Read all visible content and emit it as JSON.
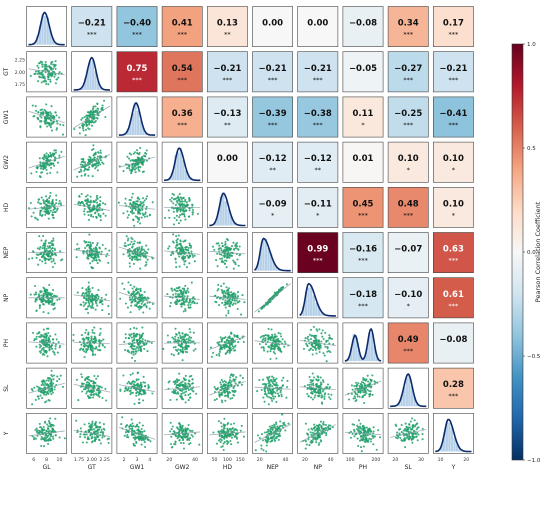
{
  "chart_data": {
    "type": "heatmap",
    "variables": [
      "GL",
      "GT",
      "GW1",
      "GW2",
      "HD",
      "NEP",
      "NP",
      "PH",
      "SL",
      "Y"
    ],
    "correlations": [
      {
        "row": "GL",
        "col": "GT",
        "r": -0.21,
        "sig": "***"
      },
      {
        "row": "GL",
        "col": "GW1",
        "r": -0.4,
        "sig": "***"
      },
      {
        "row": "GL",
        "col": "GW2",
        "r": 0.41,
        "sig": "***"
      },
      {
        "row": "GL",
        "col": "HD",
        "r": 0.13,
        "sig": "**"
      },
      {
        "row": "GL",
        "col": "NEP",
        "r": 0.0,
        "sig": ""
      },
      {
        "row": "GL",
        "col": "NP",
        "r": 0.0,
        "sig": ""
      },
      {
        "row": "GL",
        "col": "PH",
        "r": -0.08,
        "sig": ""
      },
      {
        "row": "GL",
        "col": "SL",
        "r": 0.34,
        "sig": "***"
      },
      {
        "row": "GL",
        "col": "Y",
        "r": 0.17,
        "sig": "***"
      },
      {
        "row": "GT",
        "col": "GW1",
        "r": 0.75,
        "sig": "***"
      },
      {
        "row": "GT",
        "col": "GW2",
        "r": 0.54,
        "sig": "***"
      },
      {
        "row": "GT",
        "col": "HD",
        "r": -0.21,
        "sig": "***"
      },
      {
        "row": "GT",
        "col": "NEP",
        "r": -0.21,
        "sig": "***"
      },
      {
        "row": "GT",
        "col": "NP",
        "r": -0.21,
        "sig": "***"
      },
      {
        "row": "GT",
        "col": "PH",
        "r": -0.05,
        "sig": ""
      },
      {
        "row": "GT",
        "col": "SL",
        "r": -0.27,
        "sig": "***"
      },
      {
        "row": "GT",
        "col": "Y",
        "r": -0.21,
        "sig": "***"
      },
      {
        "row": "GW1",
        "col": "GW2",
        "r": 0.36,
        "sig": "***"
      },
      {
        "row": "GW1",
        "col": "HD",
        "r": -0.13,
        "sig": "**"
      },
      {
        "row": "GW1",
        "col": "NEP",
        "r": -0.39,
        "sig": "***"
      },
      {
        "row": "GW1",
        "col": "NP",
        "r": -0.38,
        "sig": "***"
      },
      {
        "row": "GW1",
        "col": "PH",
        "r": 0.11,
        "sig": "*"
      },
      {
        "row": "GW1",
        "col": "SL",
        "r": -0.25,
        "sig": "***"
      },
      {
        "row": "GW1",
        "col": "Y",
        "r": -0.41,
        "sig": "***"
      },
      {
        "row": "GW2",
        "col": "HD",
        "r": 0.0,
        "sig": ""
      },
      {
        "row": "GW2",
        "col": "NEP",
        "r": -0.12,
        "sig": "**"
      },
      {
        "row": "GW2",
        "col": "NP",
        "r": -0.12,
        "sig": "**"
      },
      {
        "row": "GW2",
        "col": "PH",
        "r": 0.01,
        "sig": ""
      },
      {
        "row": "GW2",
        "col": "SL",
        "r": 0.1,
        "sig": "*"
      },
      {
        "row": "GW2",
        "col": "Y",
        "r": 0.1,
        "sig": "*"
      },
      {
        "row": "HD",
        "col": "NEP",
        "r": -0.09,
        "sig": "*"
      },
      {
        "row": "HD",
        "col": "NP",
        "r": -0.11,
        "sig": "*"
      },
      {
        "row": "HD",
        "col": "PH",
        "r": 0.45,
        "sig": "***"
      },
      {
        "row": "HD",
        "col": "SL",
        "r": 0.48,
        "sig": "***"
      },
      {
        "row": "HD",
        "col": "Y",
        "r": 0.1,
        "sig": "*"
      },
      {
        "row": "NEP",
        "col": "NP",
        "r": 0.99,
        "sig": "***"
      },
      {
        "row": "NEP",
        "col": "PH",
        "r": -0.16,
        "sig": "***"
      },
      {
        "row": "NEP",
        "col": "SL",
        "r": -0.07,
        "sig": ""
      },
      {
        "row": "NEP",
        "col": "Y",
        "r": 0.63,
        "sig": "***"
      },
      {
        "row": "NP",
        "col": "PH",
        "r": -0.18,
        "sig": "***"
      },
      {
        "row": "NP",
        "col": "SL",
        "r": -0.1,
        "sig": "*"
      },
      {
        "row": "NP",
        "col": "Y",
        "r": 0.61,
        "sig": "***"
      },
      {
        "row": "PH",
        "col": "SL",
        "r": 0.49,
        "sig": "***"
      },
      {
        "row": "PH",
        "col": "Y",
        "r": -0.08,
        "sig": ""
      },
      {
        "row": "SL",
        "col": "Y",
        "r": 0.28,
        "sig": "***"
      }
    ],
    "axes": {
      "x": [
        {
          "var": "GL",
          "ticks": [
            "6",
            "8",
            "10"
          ]
        },
        {
          "var": "GT",
          "ticks": [
            "1.75",
            "2.00",
            "2.25"
          ]
        },
        {
          "var": "GW1",
          "ticks": [
            "2",
            "3",
            "4"
          ]
        },
        {
          "var": "GW2",
          "ticks": [
            "20",
            "40"
          ]
        },
        {
          "var": "HD",
          "ticks": [
            "50",
            "100",
            "150"
          ]
        },
        {
          "var": "NEP",
          "ticks": [
            "20",
            "40"
          ]
        },
        {
          "var": "NP",
          "ticks": [
            "20",
            "40"
          ]
        },
        {
          "var": "PH",
          "ticks": [
            "100",
            "200"
          ]
        },
        {
          "var": "SL",
          "ticks": [
            "20",
            "30"
          ]
        },
        {
          "var": "Y",
          "ticks": [
            "10",
            "20"
          ]
        }
      ],
      "y_GT_ticks": [
        "1.75",
        "2.00",
        "2.25"
      ]
    },
    "colorbar": {
      "label": "Pearson Correlation Coefficient",
      "range": [
        -1,
        1
      ],
      "ticks": [
        "-1.0",
        "-0.5",
        "0.0",
        "0.5",
        "1.0"
      ],
      "colors": [
        "#053061",
        "#2166ac",
        "#4393c3",
        "#92c5de",
        "#d1e5f0",
        "#f7f7f7",
        "#fddbc7",
        "#f4a582",
        "#d6604d",
        "#b2182b",
        "#67001f"
      ]
    },
    "scatter_color": "#22a06b",
    "density_color": "#0d2b6b",
    "hist_color": "#9cc0e0"
  }
}
